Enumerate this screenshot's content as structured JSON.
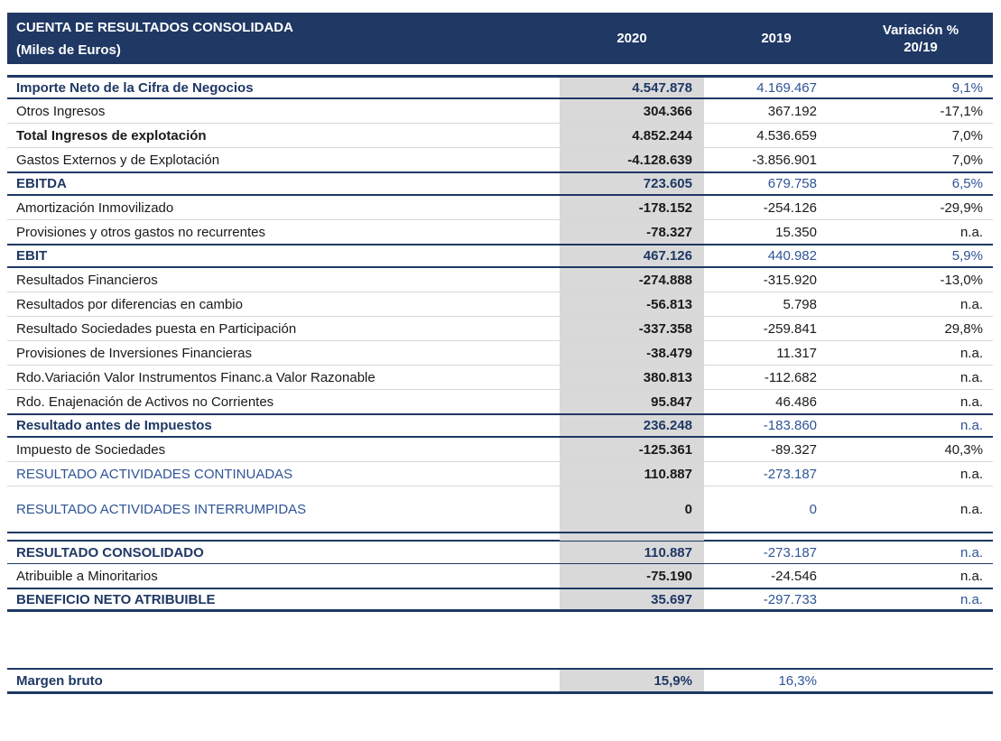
{
  "colors": {
    "header_bg": "#1f3864",
    "accent_navy": "#1f3864",
    "accent_blue": "#2f5496",
    "col_2020_bg": "#d9d9d9"
  },
  "table": {
    "header": {
      "title_line1": "CUENTA DE RESULTADOS CONSOLIDADA",
      "title_line2": "(Miles de Euros)",
      "col_2020": "2020",
      "col_2019": "2019",
      "col_var_line1": "Variación %",
      "col_var_line2": "20/19"
    },
    "rows": [
      {
        "label": "Importe Neto de la Cifra de Negocios",
        "v2020": "4.547.878",
        "v2019": "4.169.467",
        "var": "9,1%",
        "style": "section first"
      },
      {
        "label": "Otros Ingresos",
        "v2020": "304.366",
        "v2019": "367.192",
        "var": "-17,1%",
        "style": "normal"
      },
      {
        "label": "Total Ingresos de explotación",
        "v2020": "4.852.244",
        "v2019": "4.536.659",
        "var": "7,0%",
        "style": "bold"
      },
      {
        "label": "Gastos Externos y de Explotación",
        "v2020": "-4.128.639",
        "v2019": "-3.856.901",
        "var": "7,0%",
        "style": "normal"
      },
      {
        "label": "EBITDA",
        "v2020": "723.605",
        "v2019": "679.758",
        "var": "6,5%",
        "style": "section"
      },
      {
        "label": "Amortización Inmovilizado",
        "v2020": "-178.152",
        "v2019": "-254.126",
        "var": "-29,9%",
        "style": "normal"
      },
      {
        "label": "Provisiones y otros gastos no recurrentes",
        "v2020": "-78.327",
        "v2019": "15.350",
        "var": "n.a.",
        "style": "normal"
      },
      {
        "label": "EBIT",
        "v2020": "467.126",
        "v2019": "440.982",
        "var": "5,9%",
        "style": "section"
      },
      {
        "label": "Resultados Financieros",
        "v2020": "-274.888",
        "v2019": "-315.920",
        "var": "-13,0%",
        "style": "normal"
      },
      {
        "label": "Resultados por diferencias en cambio",
        "v2020": "-56.813",
        "v2019": "5.798",
        "var": "n.a.",
        "style": "normal"
      },
      {
        "label": "Resultado Sociedades puesta en Participación",
        "v2020": "-337.358",
        "v2019": "-259.841",
        "var": "29,8%",
        "style": "normal"
      },
      {
        "label": "Provisiones de Inversiones Financieras",
        "v2020": "-38.479",
        "v2019": "11.317",
        "var": "n.a.",
        "style": "normal"
      },
      {
        "label": "Rdo.Variación Valor Instrumentos Financ.a Valor Razonable",
        "v2020": "380.813",
        "v2019": "-112.682",
        "var": "n.a.",
        "style": "normal"
      },
      {
        "label": "Rdo. Enajenación de Activos no Corrientes",
        "v2020": "95.847",
        "v2019": "46.486",
        "var": "n.a.",
        "style": "normal"
      },
      {
        "label": "Resultado antes de Impuestos",
        "v2020": "236.248",
        "v2019": "-183.860",
        "var": "n.a.",
        "style": "section"
      },
      {
        "label": "Impuesto de Sociedades",
        "v2020": "-125.361",
        "v2019": "-89.327",
        "var": "40,3%",
        "style": "normal"
      },
      {
        "label": "RESULTADO ACTIVIDADES CONTINUADAS",
        "v2020": "110.887",
        "v2019": "-273.187",
        "var": "n.a.",
        "style": "caps"
      },
      {
        "label": "RESULTADO ACTIVIDADES INTERRUMPIDAS",
        "v2020": "0",
        "v2019": "0",
        "var": "n.a.",
        "style": "caps tall"
      },
      {
        "label": "",
        "v2020": "",
        "v2019": "",
        "var": "",
        "style": "spacer"
      },
      {
        "label": "RESULTADO CONSOLIDADO",
        "v2020": "110.887",
        "v2019": "-273.187",
        "var": "n.a.",
        "style": "section consolidado"
      },
      {
        "label": "Atribuible a Minoritarios",
        "v2020": "-75.190",
        "v2019": "-24.546",
        "var": "n.a.",
        "style": "normal"
      },
      {
        "label": "BENEFICIO NETO ATRIBUIBLE",
        "v2020": "35.697",
        "v2019": "-297.733",
        "var": "n.a.",
        "style": "section last"
      }
    ],
    "footer_rows": [
      {
        "label": "Margen bruto",
        "v2020": "15,9%",
        "v2019": "16,3%",
        "var": "",
        "style": "section margen"
      }
    ]
  }
}
